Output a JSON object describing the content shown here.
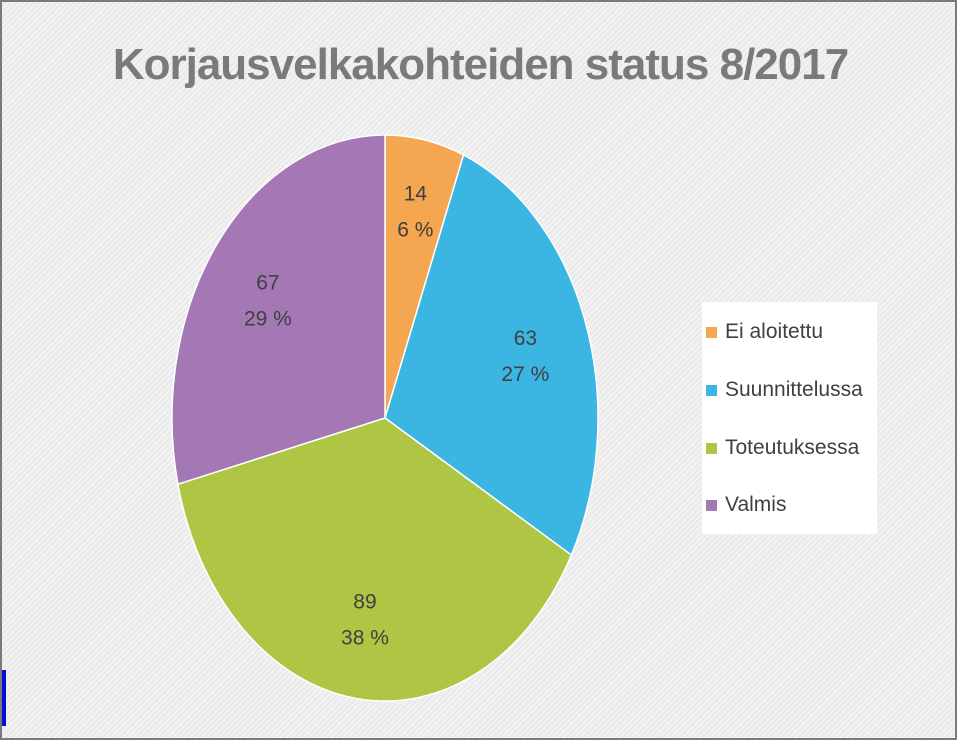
{
  "chart_data": {
    "type": "pie",
    "title": "Korjausvelkakohteiden status 8/2017",
    "legend_position": "right",
    "slices": [
      {
        "label": "Ei aloitettu",
        "value": 14,
        "percent": "6 %",
        "color": "#F5A650"
      },
      {
        "label": "Suunnittelussa",
        "value": 63,
        "percent": "27 %",
        "color": "#3BB6E3"
      },
      {
        "label": "Toteutuksessa",
        "value": 89,
        "percent": "38 %",
        "color": "#AEC644"
      },
      {
        "label": "Valmis",
        "value": 67,
        "percent": "29 %",
        "color": "#A478B5"
      }
    ]
  }
}
